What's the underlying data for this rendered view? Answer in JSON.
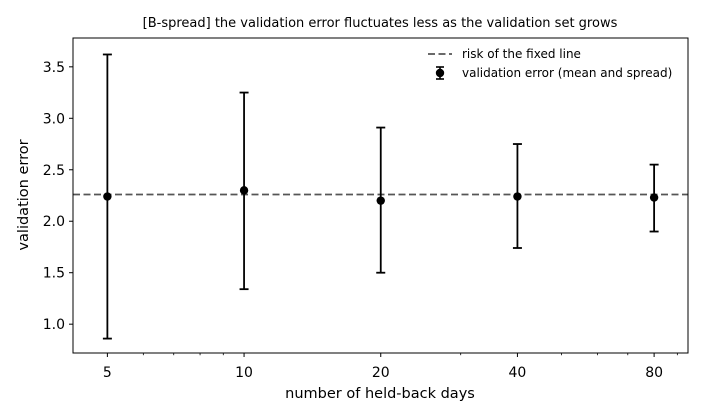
{
  "chart_data": {
    "type": "scatter",
    "title": "[B-spread] the validation error fluctuates less as the validation set grows",
    "xlabel": "number of held-back days",
    "ylabel": "validation error",
    "xscale": "log",
    "xlim": [
      4.2,
      95
    ],
    "ylim": [
      0.72,
      3.78
    ],
    "xticks": [
      5,
      10,
      20,
      40,
      80
    ],
    "xtick_labels": [
      "5",
      "10",
      "20",
      "40",
      "80"
    ],
    "yticks": [
      1.0,
      1.5,
      2.0,
      2.5,
      3.0,
      3.5
    ],
    "ytick_labels": [
      "1.0",
      "1.5",
      "2.0",
      "2.5",
      "3.0",
      "3.5"
    ],
    "grid": false,
    "legend_position": "top-right",
    "reference_line": {
      "name": "risk of the fixed line",
      "y": 2.26,
      "style": "dashed",
      "color": "#555555"
    },
    "series": [
      {
        "name": "validation error (mean and spread)",
        "color": "#000000",
        "x": [
          5,
          10,
          20,
          40,
          80
        ],
        "y": [
          2.24,
          2.3,
          2.2,
          2.24,
          2.23
        ],
        "err_low": [
          0.86,
          1.34,
          1.5,
          1.74,
          1.9
        ],
        "err_high": [
          3.62,
          3.25,
          2.91,
          2.75,
          2.55
        ]
      }
    ]
  }
}
